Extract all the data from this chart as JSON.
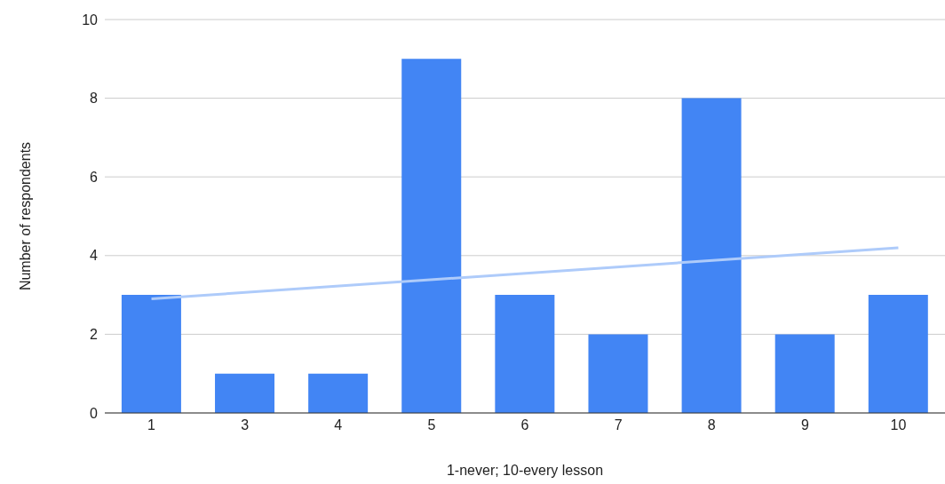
{
  "chart_data": {
    "type": "bar",
    "xlabel": "1-never; 10-every lesson",
    "ylabel": "Number of respondents",
    "categories": [
      "1",
      "3",
      "4",
      "5",
      "6",
      "7",
      "8",
      "9",
      "10"
    ],
    "series": [
      {
        "color": "#4285f4",
        "values": [
          3,
          1,
          1,
          9,
          3,
          2,
          8,
          2,
          3
        ]
      },
      {
        "type": "line",
        "color": "#aecbfa",
        "x": [
          "1",
          "10"
        ],
        "values": [
          2.9,
          4.2
        ]
      }
    ],
    "ylim": [
      0,
      10
    ],
    "yticks": [
      0,
      2,
      4,
      6,
      8,
      10
    ],
    "grid": "y",
    "legend": false
  }
}
